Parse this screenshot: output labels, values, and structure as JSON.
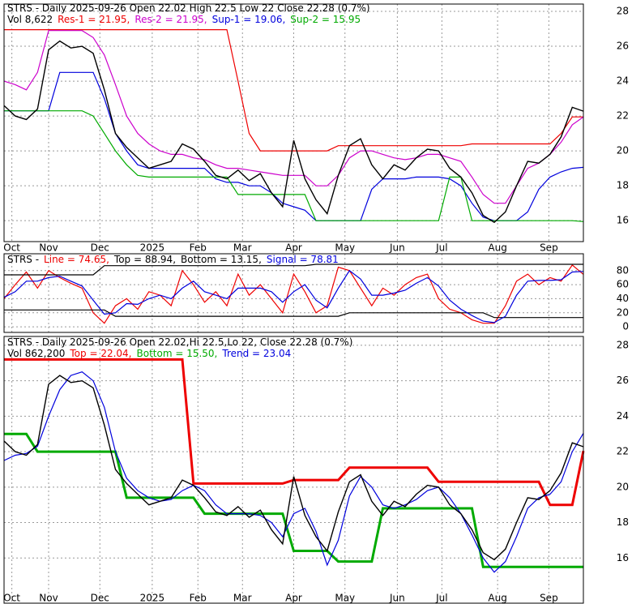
{
  "chart_data": [
    {
      "type": "line",
      "title": "STRS - Daily 2025-09-26 Open 22.02  High 22.5  Low 22  Close 22.28 (0.7%)",
      "subtitle": "Vol 8,622",
      "xlim": [
        0,
        52
      ],
      "xticks": [
        {
          "value": 0.7,
          "label": "Oct"
        },
        {
          "value": 4,
          "label": "Nov"
        },
        {
          "value": 8.6,
          "label": "Dec"
        },
        {
          "value": 13.3,
          "label": "2025"
        },
        {
          "value": 17.4,
          "label": "Feb"
        },
        {
          "value": 21.4,
          "label": "Mar"
        },
        {
          "value": 26,
          "label": "Apr"
        },
        {
          "value": 30.6,
          "label": "May"
        },
        {
          "value": 35.3,
          "label": "Jun"
        },
        {
          "value": 39.3,
          "label": "Jul"
        },
        {
          "value": 44.3,
          "label": "Aug"
        },
        {
          "value": 48.9,
          "label": "Sep"
        }
      ],
      "ylim": [
        14.8,
        28.42
      ],
      "yticks": [
        16,
        18,
        20,
        22,
        24,
        26,
        28
      ],
      "grid": true,
      "color": "#000000",
      "values": [
        22.6,
        22.0,
        21.8,
        22.4,
        25.8,
        26.3,
        25.9,
        26.0,
        25.6,
        23.5,
        21.0,
        20.2,
        19.6,
        19.0,
        19.2,
        19.4,
        20.4,
        20.1,
        19.4,
        18.6,
        18.4,
        18.9,
        18.3,
        18.7,
        17.6,
        16.8,
        20.6,
        18.4,
        17.2,
        16.4,
        18.6,
        20.3,
        20.7,
        19.2,
        18.4,
        19.2,
        18.9,
        19.6,
        20.1,
        20.0,
        19.0,
        18.5,
        17.6,
        16.3,
        15.9,
        16.5,
        18.0,
        19.4,
        19.3,
        19.8,
        20.8,
        22.5,
        22.28
      ],
      "series": [
        {
          "name": "Res-1 = 21.95,",
          "color": "#ee0000",
          "values": [
            26.95,
            26.95,
            26.95,
            26.95,
            26.95,
            26.95,
            26.95,
            26.95,
            26.95,
            26.95,
            26.95,
            26.95,
            26.95,
            26.95,
            26.95,
            26.95,
            26.95,
            26.95,
            26.95,
            26.95,
            26.95,
            24.0,
            21.0,
            20.0,
            20.0,
            20.0,
            20.0,
            20.0,
            20.0,
            20.0,
            20.3,
            20.3,
            20.3,
            20.3,
            20.3,
            20.3,
            20.3,
            20.3,
            20.3,
            20.3,
            20.3,
            20.3,
            20.4,
            20.4,
            20.4,
            20.4,
            20.4,
            20.4,
            20.4,
            20.4,
            21.0,
            21.95,
            21.95
          ]
        },
        {
          "name": "Res-2 = 21.95,",
          "color": "#cc00cc",
          "values": [
            24.0,
            23.8,
            23.5,
            24.5,
            26.9,
            26.9,
            26.9,
            26.9,
            26.5,
            25.5,
            23.8,
            22.0,
            21.0,
            20.4,
            20.0,
            19.8,
            19.8,
            19.6,
            19.5,
            19.2,
            19.0,
            19.0,
            18.9,
            18.8,
            18.7,
            18.6,
            18.6,
            18.6,
            18.0,
            18.0,
            18.6,
            19.6,
            20.0,
            20.0,
            19.8,
            19.6,
            19.5,
            19.6,
            19.8,
            19.8,
            19.6,
            19.4,
            18.5,
            17.5,
            17.0,
            17.0,
            18.0,
            19.0,
            19.3,
            19.8,
            20.5,
            21.5,
            21.95
          ]
        },
        {
          "name": "Sup-1 = 19.06,",
          "color": "#0000dd",
          "values": [
            22.3,
            22.3,
            22.3,
            22.3,
            22.3,
            24.5,
            24.5,
            24.5,
            24.5,
            23.0,
            21.0,
            20.0,
            19.2,
            19.0,
            19.0,
            19.0,
            19.0,
            19.0,
            19.0,
            18.4,
            18.2,
            18.2,
            18.0,
            18.0,
            17.6,
            17.0,
            16.8,
            16.6,
            16.0,
            16.0,
            16.0,
            16.0,
            16.0,
            17.8,
            18.4,
            18.4,
            18.4,
            18.5,
            18.5,
            18.5,
            18.4,
            18.0,
            17.0,
            16.2,
            16.0,
            16.0,
            16.0,
            16.5,
            17.8,
            18.5,
            18.8,
            19.0,
            19.06
          ]
        },
        {
          "name": "Sup-2 = 15.95",
          "color": "#00aa00",
          "values": [
            22.3,
            22.3,
            22.3,
            22.3,
            22.3,
            22.3,
            22.3,
            22.3,
            22.0,
            21.0,
            20.0,
            19.2,
            18.6,
            18.5,
            18.5,
            18.5,
            18.5,
            18.5,
            18.5,
            18.5,
            18.5,
            17.5,
            17.5,
            17.5,
            17.5,
            17.5,
            17.5,
            17.5,
            16.0,
            16.0,
            16.0,
            16.0,
            16.0,
            16.0,
            16.0,
            16.0,
            16.0,
            16.0,
            16.0,
            16.0,
            18.5,
            18.5,
            16.0,
            16.0,
            16.0,
            16.0,
            16.0,
            16.0,
            16.0,
            16.0,
            16.0,
            16.0,
            15.95
          ]
        }
      ]
    },
    {
      "type": "line",
      "title": "STRS -",
      "xlim": [
        0,
        52
      ],
      "ylim": [
        -8,
        104
      ],
      "yticks": [
        0,
        20,
        40,
        60,
        80
      ],
      "grid": true,
      "series": [
        {
          "name": "Line = 74.65,",
          "color": "#ee0000",
          "values": [
            40,
            60,
            78,
            55,
            80,
            70,
            62,
            55,
            20,
            5,
            30,
            40,
            25,
            50,
            45,
            30,
            80,
            60,
            35,
            50,
            30,
            75,
            45,
            60,
            40,
            20,
            75,
            50,
            20,
            30,
            85,
            80,
            55,
            30,
            55,
            45,
            60,
            70,
            75,
            40,
            25,
            20,
            10,
            5,
            5,
            30,
            65,
            75,
            60,
            70,
            65,
            88,
            74.65
          ]
        },
        {
          "name": "Top = 88.94,",
          "color": "#000000",
          "values": [
            74,
            74,
            74,
            74,
            74,
            74,
            74,
            74,
            74,
            87,
            87,
            87,
            87,
            87,
            87,
            87,
            87,
            87,
            87,
            87,
            87,
            87,
            87,
            87,
            87,
            87,
            87,
            87,
            88.94,
            88.94,
            88.94,
            88.94,
            88.94,
            88.94,
            88.94,
            88.94,
            88.94,
            88.94,
            88.94,
            88.94,
            88.94,
            88.94,
            88.94,
            88.94,
            88.94,
            88.94,
            88.94,
            88.94,
            88.94,
            88.94,
            88.94,
            88.94,
            88.94
          ]
        },
        {
          "name": "Bottom = 13.15,",
          "color": "#000000",
          "values": [
            24,
            24,
            24,
            24,
            24,
            24,
            24,
            24,
            24,
            24,
            15,
            15,
            15,
            15,
            15,
            15,
            15,
            15,
            15,
            15,
            15,
            15,
            15,
            15,
            15,
            15,
            15,
            15,
            15,
            15,
            15,
            20,
            20,
            20,
            20,
            20,
            20,
            20,
            20,
            20,
            20,
            20,
            20,
            20,
            13.15,
            13.15,
            13.15,
            13.15,
            13.15,
            13.15,
            13.15,
            13.15,
            13.15
          ]
        },
        {
          "name": "Signal = 78.81",
          "color": "#0000dd",
          "values": [
            42,
            50,
            65,
            65,
            70,
            72,
            65,
            58,
            38,
            18,
            20,
            33,
            32,
            40,
            45,
            40,
            55,
            65,
            50,
            45,
            40,
            55,
            55,
            55,
            50,
            35,
            50,
            60,
            38,
            27,
            55,
            80,
            68,
            45,
            45,
            48,
            52,
            62,
            70,
            58,
            38,
            25,
            16,
            8,
            6,
            15,
            45,
            65,
            66,
            66,
            67,
            78,
            78.81
          ]
        }
      ]
    },
    {
      "type": "line",
      "title": "STRS - Daily 2025-09-26 Open 22.02,Hi 22.5,Lo 22, Close 22.28 (0.7%)",
      "subtitle": "Vol 862,200",
      "xlim": [
        0,
        52
      ],
      "xticks": [
        {
          "value": 0.7,
          "label": "Oct"
        },
        {
          "value": 4,
          "label": "Nov"
        },
        {
          "value": 8.6,
          "label": "Dec"
        },
        {
          "value": 13.3,
          "label": "2025"
        },
        {
          "value": 17.4,
          "label": "Feb"
        },
        {
          "value": 21.4,
          "label": "Mar"
        },
        {
          "value": 26,
          "label": "Apr"
        },
        {
          "value": 30.6,
          "label": "May"
        },
        {
          "value": 35.3,
          "label": "Jun"
        },
        {
          "value": 39.3,
          "label": "Jul"
        },
        {
          "value": 44.3,
          "label": "Aug"
        },
        {
          "value": 48.9,
          "label": "Sep"
        }
      ],
      "ylim": [
        13.45,
        28.5
      ],
      "yticks": [
        16,
        18,
        20,
        22,
        24,
        26,
        28
      ],
      "grid": true,
      "color": "#000000",
      "values": [
        22.6,
        22.0,
        21.8,
        22.4,
        25.8,
        26.3,
        25.9,
        26.0,
        25.6,
        23.5,
        21.0,
        20.2,
        19.6,
        19.0,
        19.2,
        19.4,
        20.4,
        20.1,
        19.4,
        18.6,
        18.4,
        18.9,
        18.3,
        18.7,
        17.6,
        16.8,
        20.6,
        18.4,
        17.2,
        16.4,
        18.6,
        20.3,
        20.7,
        19.2,
        18.4,
        19.2,
        18.9,
        19.6,
        20.1,
        20.0,
        19.0,
        18.5,
        17.6,
        16.3,
        15.9,
        16.5,
        18.0,
        19.4,
        19.3,
        19.8,
        20.8,
        22.5,
        22.28
      ],
      "series": [
        {
          "name": "Top = 22.04,",
          "color": "#ee0000",
          "values": [
            27.2,
            27.2,
            27.2,
            27.2,
            27.2,
            27.2,
            27.2,
            27.2,
            27.2,
            27.2,
            27.2,
            27.2,
            27.2,
            27.2,
            27.2,
            27.2,
            27.2,
            20.2,
            20.2,
            20.2,
            20.2,
            20.2,
            20.2,
            20.2,
            20.2,
            20.2,
            20.4,
            20.4,
            20.4,
            20.4,
            20.4,
            21.1,
            21.1,
            21.1,
            21.1,
            21.1,
            21.1,
            21.1,
            21.1,
            20.3,
            20.3,
            20.3,
            20.3,
            20.3,
            20.3,
            20.3,
            20.3,
            20.3,
            20.3,
            19.0,
            19.0,
            19.0,
            22.04
          ]
        },
        {
          "name": "Bottom = 15.50,",
          "color": "#00aa00",
          "values": [
            23.0,
            23.0,
            23.0,
            22.0,
            22.0,
            22.0,
            22.0,
            22.0,
            22.0,
            22.0,
            22.0,
            19.4,
            19.4,
            19.4,
            19.4,
            19.4,
            19.4,
            19.4,
            18.5,
            18.5,
            18.5,
            18.5,
            18.5,
            18.5,
            18.5,
            18.5,
            16.4,
            16.4,
            16.4,
            16.4,
            15.8,
            15.8,
            15.8,
            15.8,
            18.8,
            18.8,
            18.8,
            18.8,
            18.8,
            18.8,
            18.8,
            18.8,
            18.8,
            15.5,
            15.5,
            15.5,
            15.5,
            15.5,
            15.5,
            15.5,
            15.5,
            15.5,
            15.5
          ]
        },
        {
          "name": "Trend = 23.04",
          "color": "#0000dd",
          "values": [
            21.5,
            21.8,
            21.9,
            22.3,
            24.0,
            25.5,
            26.3,
            26.5,
            26.0,
            24.5,
            22.0,
            20.5,
            19.8,
            19.4,
            19.2,
            19.3,
            19.8,
            20.1,
            19.8,
            19.0,
            18.5,
            18.5,
            18.5,
            18.4,
            18.0,
            17.2,
            18.5,
            18.8,
            17.5,
            15.6,
            17.0,
            19.5,
            20.6,
            20.0,
            19.0,
            18.8,
            19.0,
            19.3,
            19.8,
            20.0,
            19.4,
            18.5,
            17.3,
            16.0,
            15.2,
            15.8,
            17.2,
            18.8,
            19.4,
            19.6,
            20.3,
            22.0,
            23.04
          ]
        }
      ]
    }
  ]
}
